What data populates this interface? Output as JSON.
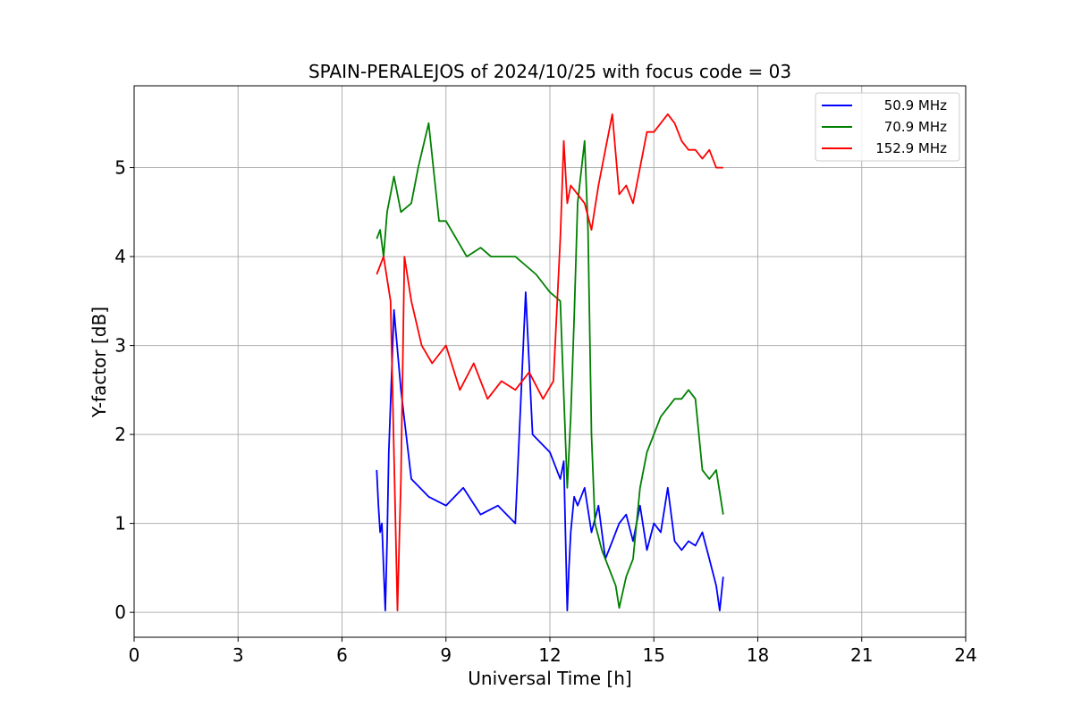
{
  "chart_data": {
    "type": "line",
    "title": "SPAIN-PERALEJOS of 2024/10/25 with focus code = 03",
    "xlabel": "Universal Time [h]",
    "ylabel": "Y-factor [dB]",
    "xlim": [
      0,
      24
    ],
    "ylim": [
      -0.28,
      5.92
    ],
    "xticks": [
      0,
      3,
      6,
      9,
      12,
      15,
      18,
      21,
      24
    ],
    "yticks": [
      0,
      1,
      2,
      3,
      4,
      5
    ],
    "grid": true,
    "legend_position": "upper-right",
    "series": [
      {
        "name": "50.9 MHz",
        "color": "#0000ff",
        "x": [
          7.0,
          7.05,
          7.1,
          7.15,
          7.2,
          7.25,
          7.3,
          7.35,
          7.5,
          7.7,
          8.0,
          8.5,
          9.0,
          9.5,
          10.0,
          10.5,
          11.0,
          11.3,
          11.5,
          12.0,
          12.3,
          12.4,
          12.5,
          12.55,
          12.6,
          12.7,
          12.8,
          13.0,
          13.2,
          13.4,
          13.6,
          13.8,
          14.0,
          14.2,
          14.4,
          14.6,
          14.8,
          15.0,
          15.2,
          15.4,
          15.6,
          15.8,
          16.0,
          16.2,
          16.4,
          16.6,
          16.8,
          16.9,
          17.0
        ],
        "y": [
          1.6,
          1.2,
          0.9,
          1.0,
          0.5,
          0.02,
          0.8,
          1.8,
          3.4,
          2.5,
          1.5,
          1.3,
          1.2,
          1.4,
          1.1,
          1.2,
          1.0,
          3.6,
          2.0,
          1.8,
          1.5,
          1.7,
          0.02,
          0.5,
          0.9,
          1.3,
          1.2,
          1.4,
          0.9,
          1.2,
          0.6,
          0.8,
          1.0,
          1.1,
          0.8,
          1.2,
          0.7,
          1.0,
          0.9,
          1.4,
          0.8,
          0.7,
          0.8,
          0.75,
          0.9,
          0.6,
          0.3,
          0.02,
          0.4
        ]
      },
      {
        "name": "70.9 MHz",
        "color": "#008000",
        "x": [
          7.0,
          7.1,
          7.2,
          7.3,
          7.5,
          7.7,
          8.0,
          8.2,
          8.5,
          8.8,
          9.0,
          9.3,
          9.6,
          10.0,
          10.3,
          10.6,
          11.0,
          11.3,
          11.6,
          12.0,
          12.3,
          12.5,
          12.6,
          12.7,
          12.8,
          13.0,
          13.1,
          13.2,
          13.3,
          13.5,
          13.7,
          13.9,
          14.0,
          14.2,
          14.4,
          14.6,
          14.8,
          15.0,
          15.2,
          15.4,
          15.6,
          15.8,
          16.0,
          16.2,
          16.4,
          16.6,
          16.8,
          17.0
        ],
        "y": [
          4.2,
          4.3,
          4.0,
          4.5,
          4.9,
          4.5,
          4.6,
          5.0,
          5.5,
          4.4,
          4.4,
          4.2,
          4.0,
          4.1,
          4.0,
          4.0,
          4.0,
          3.9,
          3.8,
          3.6,
          3.5,
          1.4,
          2.2,
          3.3,
          4.6,
          5.3,
          4.3,
          2.0,
          1.0,
          0.7,
          0.5,
          0.3,
          0.05,
          0.4,
          0.6,
          1.4,
          1.8,
          2.0,
          2.2,
          2.3,
          2.4,
          2.4,
          2.5,
          2.4,
          1.6,
          1.5,
          1.6,
          1.1
        ]
      },
      {
        "name": "152.9 MHz",
        "color": "#ff0000",
        "x": [
          7.0,
          7.2,
          7.4,
          7.6,
          7.7,
          7.8,
          8.0,
          8.3,
          8.6,
          9.0,
          9.4,
          9.8,
          10.2,
          10.6,
          11.0,
          11.4,
          11.8,
          12.1,
          12.3,
          12.4,
          12.5,
          12.6,
          12.8,
          13.0,
          13.2,
          13.4,
          13.6,
          13.8,
          14.0,
          14.2,
          14.4,
          14.6,
          14.8,
          15.0,
          15.2,
          15.4,
          15.6,
          15.8,
          16.0,
          16.2,
          16.4,
          16.6,
          16.8,
          17.0
        ],
        "y": [
          3.8,
          4.0,
          3.5,
          0.02,
          1.5,
          4.0,
          3.5,
          3.0,
          2.8,
          3.0,
          2.5,
          2.8,
          2.4,
          2.6,
          2.5,
          2.7,
          2.4,
          2.6,
          4.2,
          5.3,
          4.6,
          4.8,
          4.7,
          4.6,
          4.3,
          4.8,
          5.2,
          5.6,
          4.7,
          4.8,
          4.6,
          5.0,
          5.4,
          5.4,
          5.5,
          5.6,
          5.5,
          5.3,
          5.2,
          5.2,
          5.1,
          5.2,
          5.0,
          5.0
        ]
      }
    ]
  }
}
